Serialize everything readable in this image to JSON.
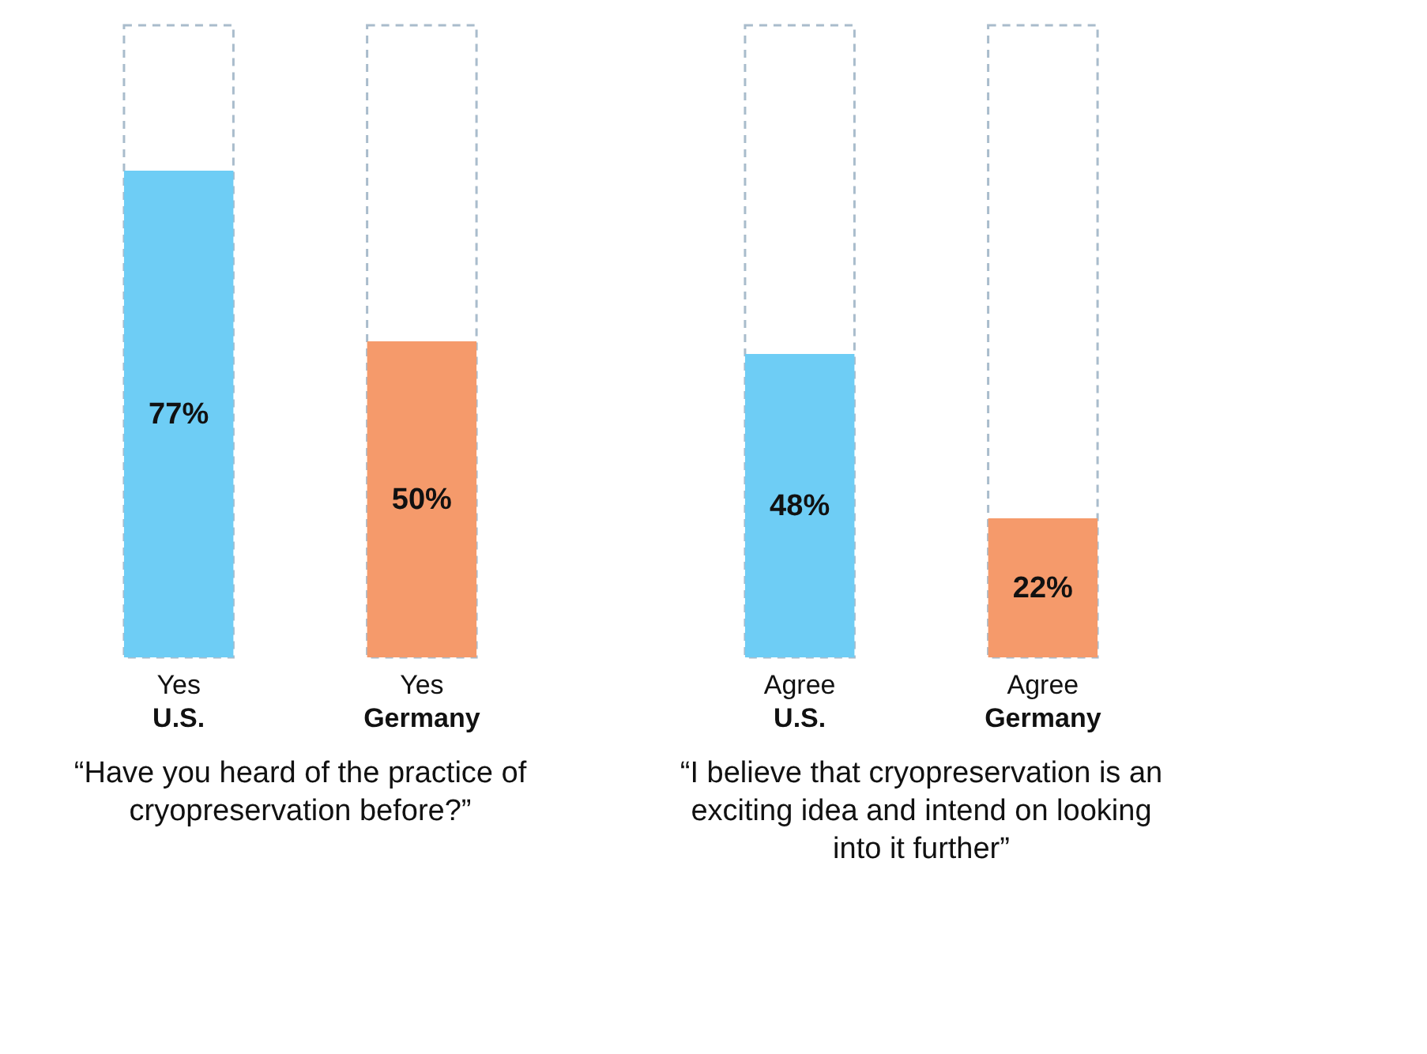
{
  "chart_data": [
    {
      "type": "bar",
      "categories": [
        "U.S.",
        "Germany"
      ],
      "xlabel": "“Have you heard of the practice of\ncryopreservation before?”",
      "ylim": [
        0,
        100
      ],
      "annotations": [
        "Yes",
        "Yes"
      ],
      "series": [
        {
          "values": [
            77,
            50
          ],
          "colors": [
            "#6ecdf5",
            "#f59a6b"
          ],
          "value_labels": [
            "77%",
            "50%"
          ]
        }
      ]
    },
    {
      "type": "bar",
      "categories": [
        "U.S.",
        "Germany"
      ],
      "xlabel": "“I believe that cryopreservation is an\nexciting idea and intend on looking\ninto it further”",
      "ylim": [
        0,
        100
      ],
      "annotations": [
        "Agree",
        "Agree"
      ],
      "series": [
        {
          "values": [
            48,
            22
          ],
          "colors": [
            "#6ecdf5",
            "#f59a6b"
          ],
          "value_labels": [
            "48%",
            "22%"
          ]
        }
      ]
    }
  ]
}
